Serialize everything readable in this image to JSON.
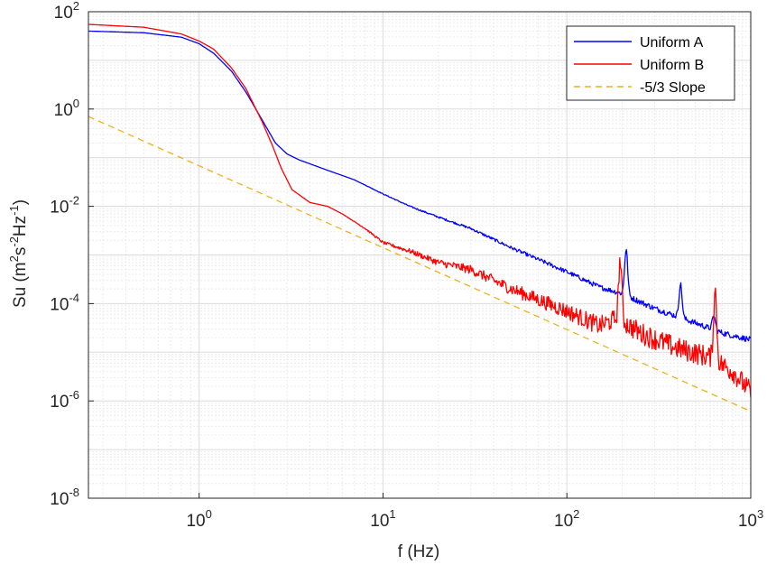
{
  "chart_data": {
    "type": "line",
    "x_scale": "log",
    "y_scale": "log",
    "xlim": [
      0.25,
      1000
    ],
    "ylim": [
      1e-08,
      100
    ],
    "xlabel": "f (Hz)",
    "ylabel": "Su (m^2 s^-2 Hz^-1)",
    "ylabel_parts": {
      "base": "Su (m",
      "e1": "2",
      "mid1": "s",
      "e2": "-2",
      "mid2": "Hz",
      "e3": "-1",
      "end": ")"
    },
    "x_ticks": [
      {
        "base": "10",
        "exp": "0",
        "value": 1
      },
      {
        "base": "10",
        "exp": "1",
        "value": 10
      },
      {
        "base": "10",
        "exp": "2",
        "value": 100
      },
      {
        "base": "10",
        "exp": "3",
        "value": 1000
      }
    ],
    "y_ticks": [
      {
        "base": "10",
        "exp": "2",
        "value": 100
      },
      {
        "base": "10",
        "exp": "0",
        "value": 1
      },
      {
        "base": "10",
        "exp": "-2",
        "value": 0.01
      },
      {
        "base": "10",
        "exp": "-4",
        "value": 0.0001
      },
      {
        "base": "10",
        "exp": "-6",
        "value": 1e-06
      },
      {
        "base": "10",
        "exp": "-8",
        "value": 1e-08
      }
    ],
    "grid": true,
    "minor_grid": true,
    "legend_position": "top-right",
    "series": [
      {
        "name": "Uniform A",
        "color": "#0000ff",
        "style": "solid",
        "noise": 0.12,
        "x": [
          0.25,
          0.5,
          0.8,
          1.0,
          1.2,
          1.5,
          1.8,
          2.2,
          2.6,
          3.0,
          3.5,
          5,
          7,
          10,
          14,
          20,
          30,
          50,
          100,
          150,
          200,
          300,
          500,
          700,
          1000
        ],
        "y": [
          40,
          37,
          30,
          22,
          14,
          6,
          2.2,
          0.6,
          0.2,
          0.12,
          0.09,
          0.055,
          0.035,
          0.018,
          0.01,
          0.006,
          0.0035,
          0.0014,
          0.00045,
          0.00022,
          0.00016,
          8e-05,
          4e-05,
          2.5e-05,
          1.8e-05
        ],
        "peaks": [
          {
            "x": 210,
            "y": 0.0013
          },
          {
            "x": 415,
            "y": 0.00025
          },
          {
            "x": 630,
            "y": 5.5e-05
          }
        ]
      },
      {
        "name": "Uniform B",
        "color": "#ff0000",
        "style": "solid",
        "noise": 0.45,
        "x": [
          0.25,
          0.5,
          0.8,
          1.0,
          1.2,
          1.5,
          1.8,
          2.2,
          2.5,
          2.8,
          3.2,
          4,
          5,
          6,
          8,
          10,
          14,
          20,
          30,
          50,
          100,
          150,
          190,
          250,
          400,
          600,
          800,
          1000
        ],
        "y": [
          55,
          48,
          35,
          25,
          17,
          7,
          2.6,
          0.55,
          0.18,
          0.06,
          0.022,
          0.012,
          0.01,
          0.007,
          0.0035,
          0.0018,
          0.0012,
          0.0007,
          0.0005,
          0.0002,
          7e-05,
          3.5e-05,
          5e-05,
          2.5e-05,
          1.2e-05,
          8e-06,
          4e-06,
          1.5e-06
        ],
        "peaks": [
          {
            "x": 195,
            "y": 0.0008
          },
          {
            "x": 640,
            "y": 0.00018
          }
        ]
      },
      {
        "name": "-5/3 Slope",
        "color": "#edb120",
        "style": "dashed",
        "noise": 0,
        "x": [
          0.25,
          1000
        ],
        "y": [
          0.7,
          6.1e-07
        ],
        "peaks": []
      }
    ]
  }
}
